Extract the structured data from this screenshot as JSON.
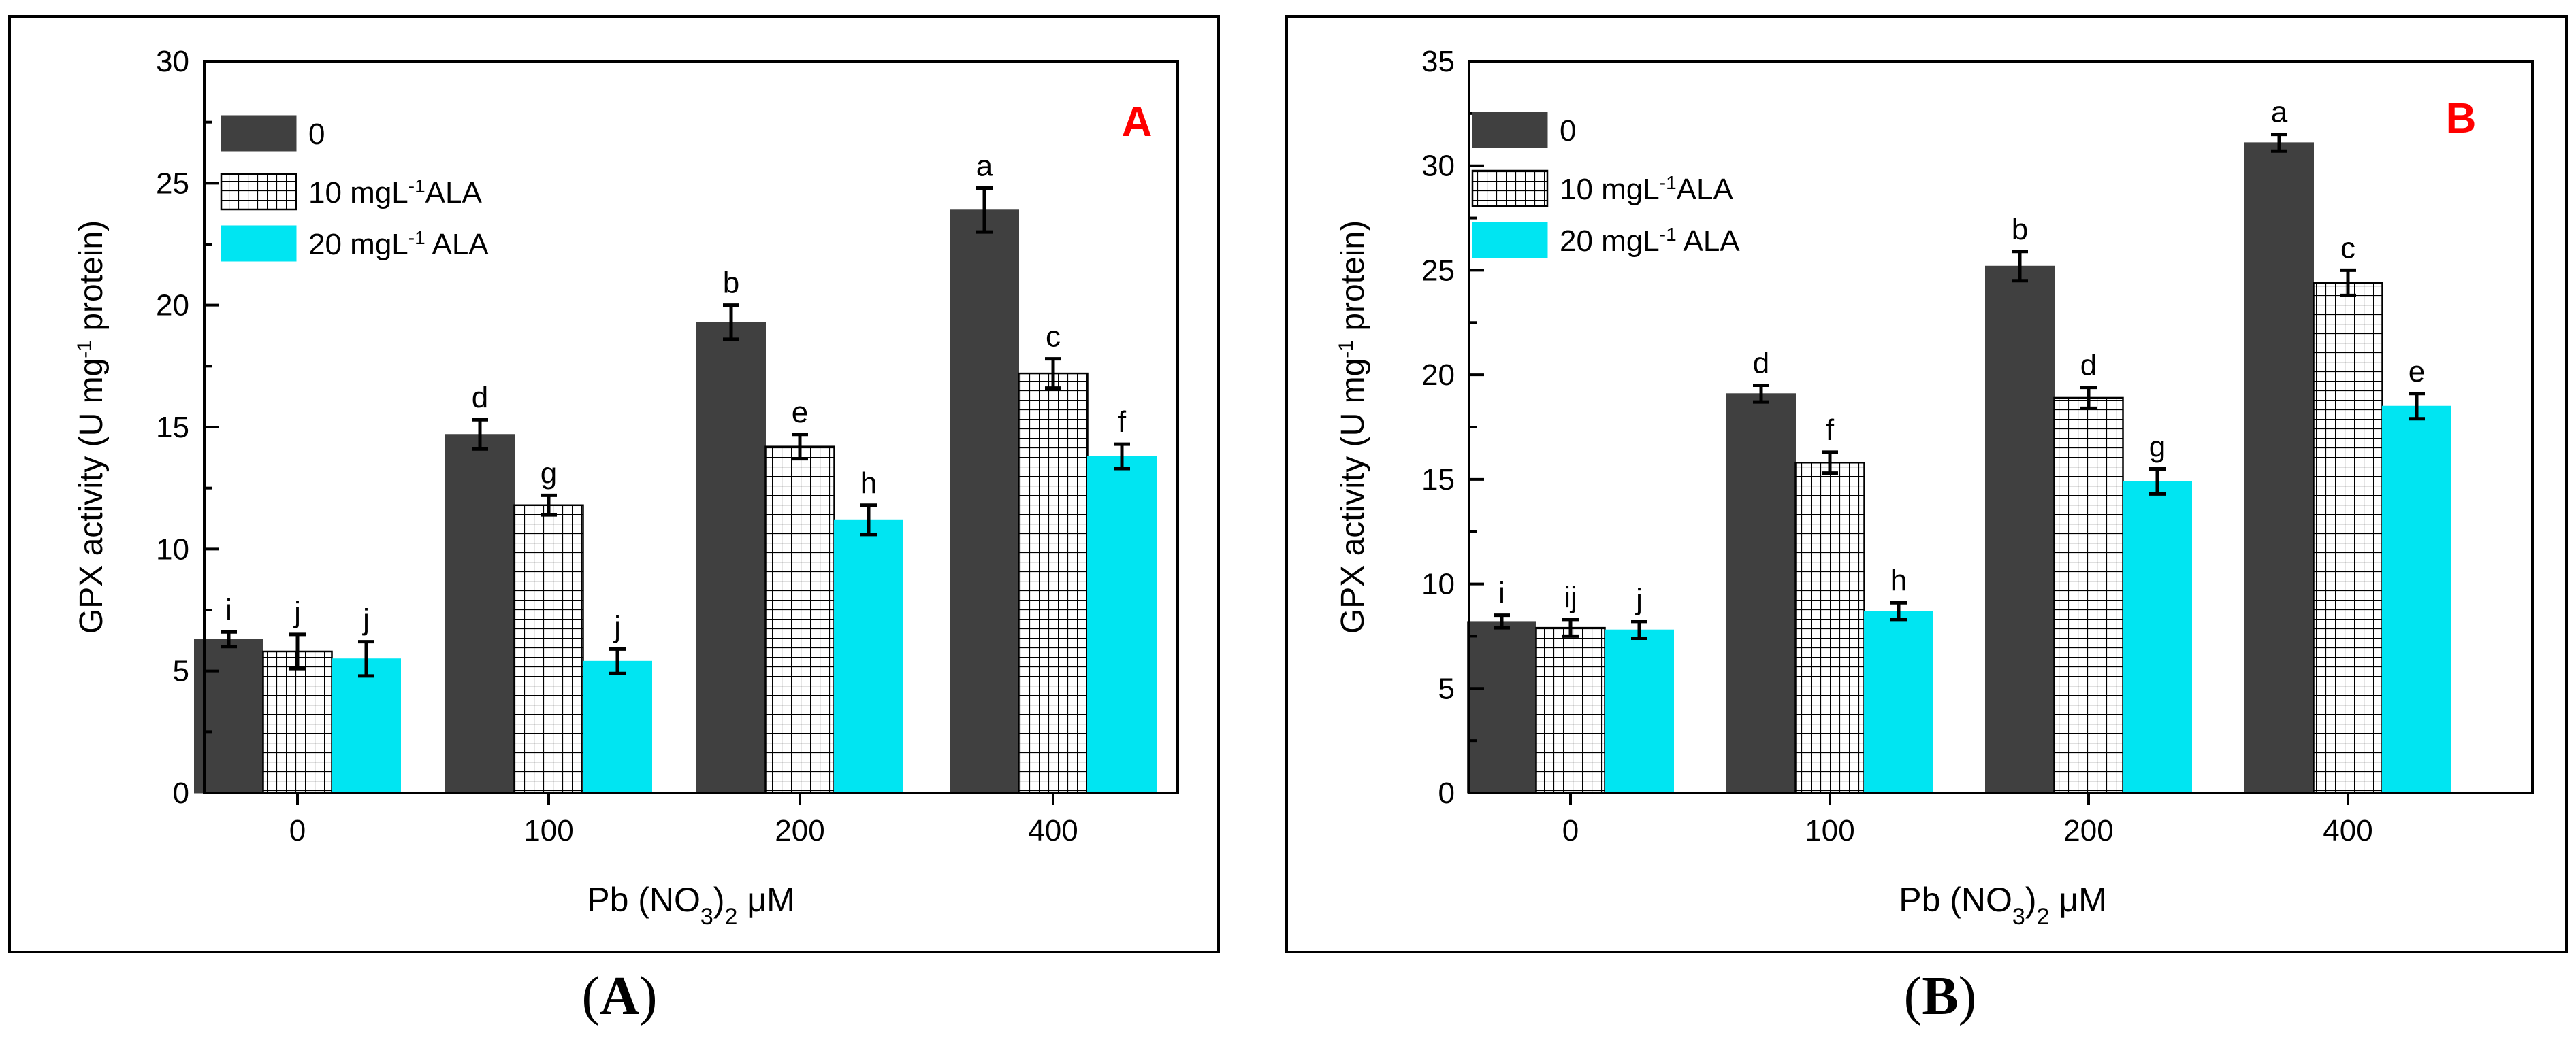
{
  "charts": [
    {
      "id": "A",
      "panel_letter": "A",
      "caption": {
        "open": "(",
        "letter": "A",
        "close": ")"
      },
      "ylabel": {
        "main": "GPX activity (U mg",
        "sup": "-1",
        "end": " protein)"
      },
      "xlabel": {
        "main": "Pb (NO",
        "sub1": "3",
        "mid": ")",
        "sub2": "2",
        "end": " μM"
      },
      "yticks": [
        "0",
        "5",
        "10",
        "15",
        "20",
        "25",
        "30"
      ],
      "ylim": [
        0,
        30
      ],
      "categories": [
        "0",
        "100",
        "200",
        "400"
      ],
      "legend": [
        {
          "name": "0",
          "sup": "",
          "after": ""
        },
        {
          "name": "10 mgL",
          "sup": "-1",
          "after": "ALA"
        },
        {
          "name": "20 mgL",
          "sup": "-1",
          "after": " ALA"
        }
      ],
      "series": [
        {
          "values": [
            6.3,
            14.7,
            19.3,
            23.9
          ],
          "errors": [
            0.3,
            0.6,
            0.7,
            0.9
          ],
          "letters": [
            "i",
            "d",
            "b",
            "a"
          ]
        },
        {
          "values": [
            5.8,
            11.8,
            14.2,
            17.2
          ],
          "errors": [
            0.7,
            0.4,
            0.5,
            0.6
          ],
          "letters": [
            "j",
            "g",
            "e",
            "c"
          ]
        },
        {
          "values": [
            5.5,
            5.4,
            11.2,
            13.8
          ],
          "errors": [
            0.7,
            0.5,
            0.6,
            0.5
          ],
          "letters": [
            "j",
            "j",
            "h",
            "f"
          ]
        }
      ]
    },
    {
      "id": "B",
      "panel_letter": "B",
      "caption": {
        "open": "(",
        "letter": "B",
        "close": ")"
      },
      "ylabel": {
        "main": "GPX activity (U mg",
        "sup": "-1",
        "end": " protein)"
      },
      "xlabel": {
        "main": "Pb (NO",
        "sub1": "3",
        "mid": ")",
        "sub2": "2",
        "end": " μM"
      },
      "yticks": [
        "0",
        "5",
        "10",
        "15",
        "20",
        "25",
        "30",
        "35"
      ],
      "ylim": [
        0,
        35
      ],
      "categories": [
        "0",
        "100",
        "200",
        "400"
      ],
      "legend": [
        {
          "name": "0",
          "sup": "",
          "after": ""
        },
        {
          "name": "10 mgL",
          "sup": "-1",
          "after": "ALA"
        },
        {
          "name": "20 mgL",
          "sup": "-1",
          "after": " ALA"
        }
      ],
      "series": [
        {
          "values": [
            8.2,
            19.1,
            25.2,
            31.1
          ],
          "errors": [
            0.3,
            0.4,
            0.7,
            0.4
          ],
          "letters": [
            "i",
            "d",
            "b",
            "a"
          ]
        },
        {
          "values": [
            7.9,
            15.8,
            18.9,
            24.4
          ],
          "errors": [
            0.4,
            0.5,
            0.5,
            0.6
          ],
          "letters": [
            "ij",
            "f",
            "d",
            "c"
          ]
        },
        {
          "values": [
            7.8,
            8.7,
            14.9,
            18.5
          ],
          "errors": [
            0.4,
            0.4,
            0.6,
            0.6
          ],
          "letters": [
            "j",
            "h",
            "g",
            "e"
          ]
        }
      ]
    }
  ],
  "chart_data": [
    {
      "type": "bar",
      "title": "A",
      "xlabel": "Pb (NO3)2 μM",
      "ylabel": "GPX activity (U mg-1 protein)",
      "ylim": [
        0,
        30
      ],
      "categories": [
        "0",
        "100",
        "200",
        "400"
      ],
      "series": [
        {
          "name": "0",
          "values": [
            6.3,
            14.7,
            19.3,
            23.9
          ]
        },
        {
          "name": "10 mgL-1ALA",
          "values": [
            5.8,
            11.8,
            14.2,
            17.2
          ]
        },
        {
          "name": "20 mgL-1 ALA",
          "values": [
            5.5,
            5.4,
            11.2,
            13.8
          ]
        }
      ]
    },
    {
      "type": "bar",
      "title": "B",
      "xlabel": "Pb (NO3)2 μM",
      "ylabel": "GPX activity (U mg-1 protein)",
      "ylim": [
        0,
        35
      ],
      "categories": [
        "0",
        "100",
        "200",
        "400"
      ],
      "series": [
        {
          "name": "0",
          "values": [
            8.2,
            19.1,
            25.2,
            31.1
          ]
        },
        {
          "name": "10 mgL-1ALA",
          "values": [
            7.9,
            15.8,
            18.9,
            24.4
          ]
        },
        {
          "name": "20 mgL-1 ALA",
          "values": [
            7.8,
            8.7,
            14.9,
            18.5
          ]
        }
      ]
    }
  ],
  "colors": {
    "series": [
      "#404040",
      "#ffffff",
      "#00e5f2"
    ],
    "panel_letter": "#ff0000",
    "axis": "#000000"
  }
}
